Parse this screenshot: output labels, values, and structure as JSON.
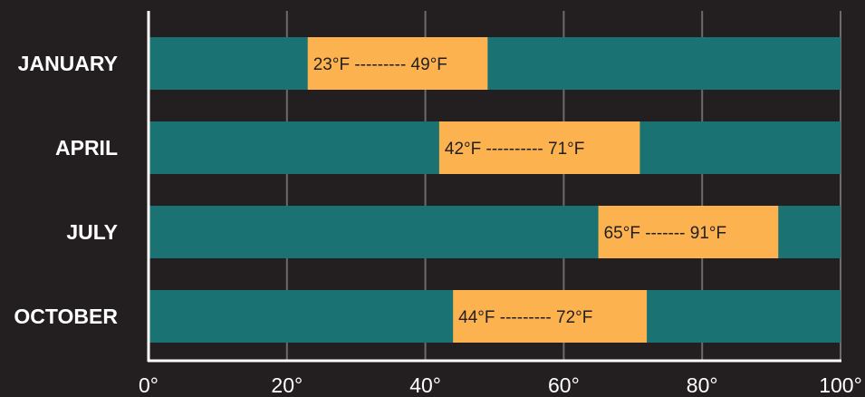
{
  "chart_data": {
    "type": "bar",
    "orientation": "horizontal",
    "categories": [
      "JANUARY",
      "APRIL",
      "JULY",
      "OCTOBER"
    ],
    "series": [
      {
        "low": [
          23,
          42,
          65,
          44
        ],
        "high": [
          49,
          71,
          91,
          72
        ]
      }
    ],
    "range_labels": [
      "23°F --------- 49°F",
      "42°F ---------- 71°F",
      "65°F ------- 91°F",
      "44°F --------- 72°F"
    ],
    "x_ticks": [
      0,
      20,
      40,
      60,
      80,
      100
    ],
    "x_tick_labels": [
      "0°",
      "20°",
      "40°",
      "60°",
      "80°",
      "100°"
    ],
    "xlim": [
      0,
      100
    ],
    "grid": true,
    "title": "",
    "xlabel": "",
    "ylabel": "",
    "colors": {
      "background": "#231f20",
      "track": "#1b7272",
      "range": "#fbb24f",
      "grid": "#6b6b6b",
      "axis": "#ffffff",
      "text": "#ffffff",
      "range_text": "#231f20"
    }
  }
}
